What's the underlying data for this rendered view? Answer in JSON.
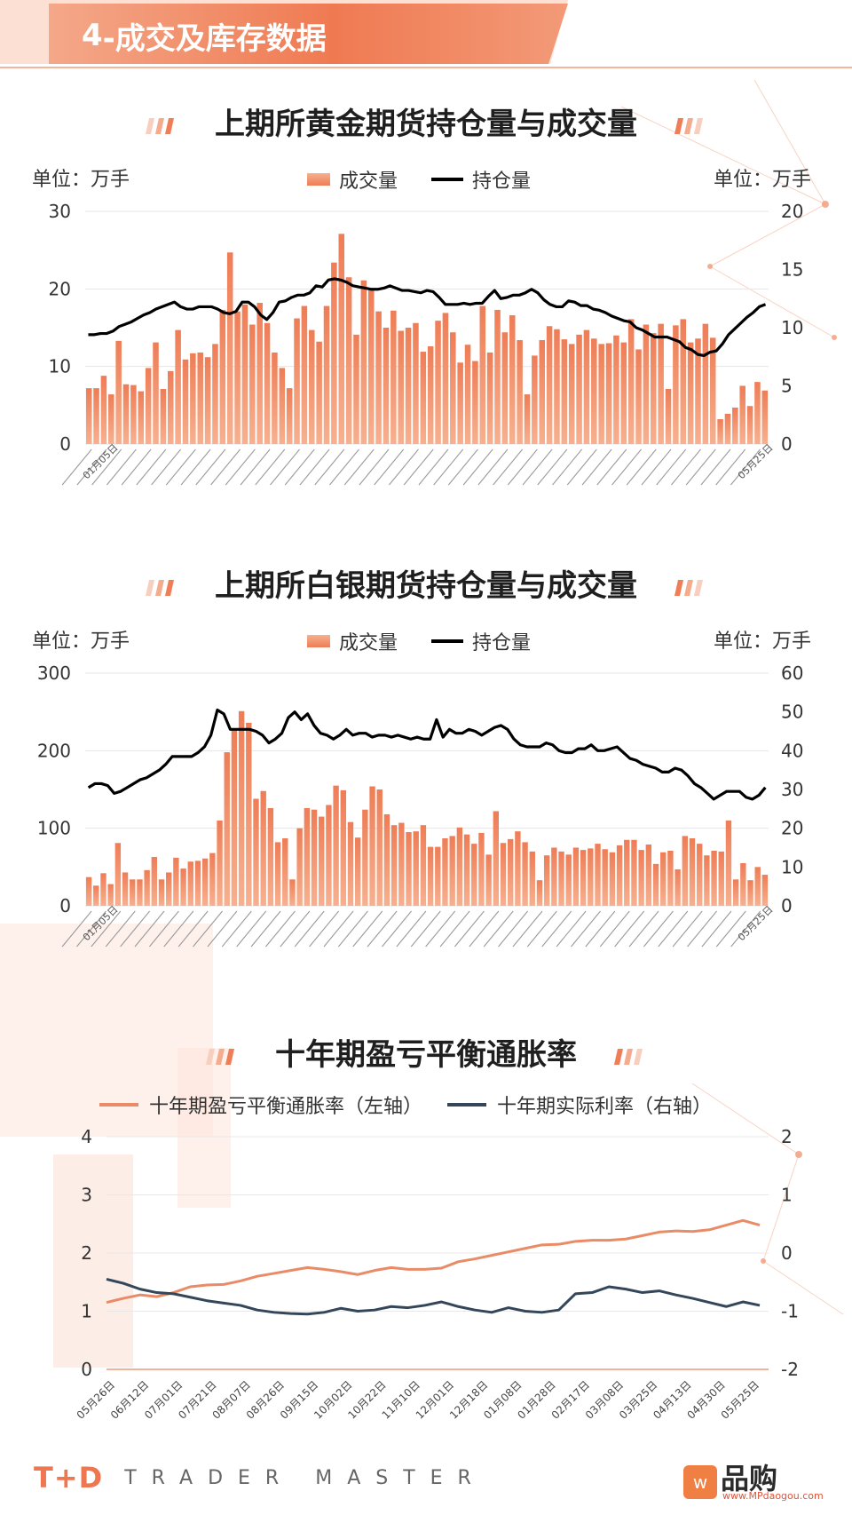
{
  "section": {
    "number": "4",
    "title": "-成交及库存数据"
  },
  "gold": {
    "title": "上期所黄金期货持仓量与成交量",
    "unit_left": "单位：万手",
    "unit_right": "单位：万手",
    "legend": {
      "bar": "成交量",
      "line": "持仓量"
    }
  },
  "silver": {
    "title": "上期所白银期货持仓量与成交量",
    "unit_left": "单位：万手",
    "unit_right": "单位：万手",
    "legend": {
      "bar": "成交量",
      "line": "持仓量"
    }
  },
  "inflation": {
    "title": "十年期盈亏平衡通胀率",
    "legend": {
      "orange": "十年期盈亏平衡通胀率（左轴）",
      "navy": "十年期实际利率（右轴）"
    }
  },
  "footer": {
    "logo": "T+D",
    "brand": "TRADER MASTER"
  },
  "watermark": {
    "mark": "w",
    "name": "品购",
    "url": "www.MPdaogou.com"
  },
  "colors": {
    "bar": "#ee7d56",
    "bar_light": "#f7b08f",
    "line_black": "#000000",
    "orange_line": "#e98b66",
    "navy_line": "#34465a",
    "accent": "#ef7a52"
  },
  "chart_data": [
    {
      "type": "bar",
      "name": "gold",
      "left_axis": {
        "min": 0,
        "max": 30,
        "ticks": [
          0,
          10,
          20,
          30
        ]
      },
      "right_axis": {
        "min": 0,
        "max": 20,
        "ticks": [
          0,
          5,
          10,
          15,
          20
        ]
      },
      "x_first": "01月05日",
      "x_last": "05月25日",
      "bar_series": "成交量",
      "bars": [
        7.2,
        7.2,
        8.8,
        6.4,
        13.3,
        7.7,
        7.6,
        6.8,
        9.8,
        13.1,
        7.1,
        9.4,
        14.7,
        10.9,
        11.7,
        11.8,
        11.2,
        12.9,
        17.3,
        24.7,
        17.1,
        18.0,
        15.4,
        18.2,
        15.6,
        11.8,
        9.8,
        7.2,
        16.2,
        17.8,
        14.7,
        13.2,
        17.8,
        23.4,
        27.1,
        21.5,
        14.1,
        21.1,
        19.8,
        17.1,
        15.0,
        17.2,
        14.6,
        15.0,
        15.6,
        11.9,
        12.6,
        15.9,
        16.9,
        14.4,
        10.5,
        12.8,
        10.7,
        17.8,
        11.8,
        17.3,
        14.4,
        16.6,
        13.4,
        6.4,
        11.4,
        13.4,
        15.2,
        14.8,
        13.5,
        12.9,
        14.1,
        14.7,
        13.6,
        12.9,
        13.0,
        14.0,
        13.1,
        16.1,
        12.2,
        15.4,
        14.3,
        15.5,
        7.1,
        15.3,
        16.1,
        13.1,
        13.6,
        15.5,
        13.7,
        3.2,
        3.9,
        4.7,
        7.5,
        4.9,
        8.0,
        6.9
      ],
      "line_series": "持仓量",
      "line": [
        9.4,
        9.4,
        9.5,
        9.5,
        9.7,
        10.1,
        10.3,
        10.5,
        10.8,
        11.1,
        11.3,
        11.6,
        11.8,
        12.0,
        12.2,
        11.8,
        11.6,
        11.6,
        11.8,
        11.8,
        11.8,
        11.6,
        11.3,
        11.2,
        11.4,
        12.2,
        12.2,
        11.8,
        11.1,
        10.7,
        11.3,
        12.2,
        12.3,
        12.6,
        12.8,
        12.8,
        13.0,
        13.6,
        13.5,
        14.1,
        14.2,
        14.1,
        13.9,
        13.6,
        13.5,
        13.4,
        13.3,
        13.3,
        13.4,
        13.6,
        13.4,
        13.2,
        13.2,
        13.1,
        13.0,
        13.2,
        13.1,
        12.6,
        12.0,
        12.0,
        12.0,
        12.1,
        12.0,
        12.1,
        12.1,
        12.7,
        13.2,
        12.5,
        12.6,
        12.8,
        12.8,
        13.0,
        13.3,
        13.0,
        12.4,
        12.0,
        11.8,
        11.8,
        12.3,
        12.2,
        11.9,
        11.9,
        11.6,
        11.5,
        11.3,
        11.0,
        10.8,
        10.6,
        10.5,
        10.0,
        9.8,
        9.5,
        9.2,
        9.2,
        9.2,
        9.0,
        8.8,
        8.3,
        8.1,
        7.7,
        7.6,
        7.9,
        8.0,
        8.6,
        9.4,
        9.9,
        10.4,
        10.9,
        11.3,
        11.8,
        12.0
      ]
    },
    {
      "type": "bar",
      "name": "silver",
      "left_axis": {
        "min": 0,
        "max": 300,
        "ticks": [
          0,
          100,
          200,
          300
        ]
      },
      "right_axis": {
        "min": 0,
        "max": 60,
        "ticks": [
          0,
          10,
          20,
          30,
          40,
          50,
          60
        ]
      },
      "x_first": "01月05日",
      "x_last": "05月25日",
      "bar_series": "成交量",
      "bars": [
        37,
        26,
        42,
        28,
        81,
        43,
        34,
        34,
        46,
        63,
        34,
        43,
        62,
        48,
        57,
        58,
        61,
        68,
        110,
        198,
        228,
        251,
        236,
        138,
        148,
        126,
        82,
        87,
        34,
        100,
        126,
        124,
        115,
        130,
        155,
        149,
        108,
        88,
        124,
        154,
        150,
        118,
        104,
        107,
        95,
        96,
        104,
        76,
        76,
        87,
        90,
        101,
        92,
        80,
        94,
        66,
        122,
        81,
        86,
        96,
        82,
        70,
        33,
        65,
        75,
        70,
        66,
        75,
        72,
        74,
        80,
        73,
        69,
        78,
        85,
        85,
        72,
        79,
        54,
        69,
        71,
        47,
        90,
        87,
        80,
        65,
        71,
        70,
        110,
        34,
        55,
        33,
        50,
        40
      ],
      "line_series": "持仓量",
      "line": [
        30.5,
        31.5,
        31.5,
        31.0,
        29.0,
        29.5,
        30.5,
        31.5,
        32.5,
        33.0,
        34.0,
        35.0,
        36.5,
        38.5,
        38.5,
        38.5,
        38.5,
        39.5,
        41.0,
        44.0,
        50.5,
        49.5,
        45.5,
        45.5,
        45.5,
        45.5,
        45.0,
        44.0,
        42.0,
        43.0,
        44.5,
        48.5,
        50.0,
        48.0,
        49.5,
        46.5,
        44.5,
        44.0,
        43.0,
        44.0,
        45.5,
        44.0,
        44.5,
        44.5,
        43.5,
        44.0,
        44.0,
        43.5,
        44.0,
        43.5,
        43.0,
        43.5,
        43.0,
        43.0,
        48.0,
        43.5,
        45.5,
        44.5,
        44.5,
        45.5,
        45.0,
        44.0,
        45.0,
        46.0,
        46.5,
        45.5,
        43.0,
        41.5,
        41.0,
        41.0,
        41.0,
        42.0,
        41.5,
        40.0,
        39.5,
        39.5,
        40.5,
        40.5,
        41.5,
        40.0,
        40.0,
        40.5,
        41.0,
        39.5,
        38.0,
        37.5,
        36.5,
        36.0,
        35.5,
        34.5,
        34.5,
        35.5,
        35.0,
        33.5,
        31.5,
        30.5,
        29.0,
        27.5,
        28.5,
        29.5,
        29.5,
        29.5,
        28.0,
        27.5,
        28.5,
        30.5
      ]
    },
    {
      "type": "line",
      "name": "breakeven",
      "left_axis": {
        "min": 0,
        "max": 4,
        "ticks": [
          0,
          1,
          2,
          3,
          4
        ]
      },
      "right_axis": {
        "min": -2,
        "max": 2,
        "ticks": [
          -2,
          -1,
          0,
          1,
          2
        ]
      },
      "x_labels": [
        "05月26日",
        "06月12日",
        "07月01日",
        "07月21日",
        "08月07日",
        "08月26日",
        "09月15日",
        "10月02日",
        "10月22日",
        "11月10日",
        "12月01日",
        "12月18日",
        "01月08日",
        "01月28日",
        "02月17日",
        "03月08日",
        "03月25日",
        "04月13日",
        "04月30日",
        "05月25日"
      ],
      "series": [
        {
          "name": "十年期盈亏平衡通胀率（左轴）",
          "axis": "left",
          "values": [
            1.15,
            1.22,
            1.28,
            1.25,
            1.32,
            1.42,
            1.45,
            1.46,
            1.52,
            1.6,
            1.65,
            1.7,
            1.75,
            1.72,
            1.68,
            1.63,
            1.7,
            1.75,
            1.72,
            1.72,
            1.74,
            1.85,
            1.9,
            1.96,
            2.02,
            2.08,
            2.14,
            2.15,
            2.2,
            2.22,
            2.22,
            2.24,
            2.3,
            2.36,
            2.38,
            2.37,
            2.4,
            2.48,
            2.56,
            2.48
          ]
        },
        {
          "name": "十年期实际利率（右轴）",
          "axis": "right",
          "values": [
            -0.45,
            -0.52,
            -0.62,
            -0.68,
            -0.7,
            -0.76,
            -0.82,
            -0.86,
            -0.9,
            -0.98,
            -1.02,
            -1.04,
            -1.05,
            -1.02,
            -0.95,
            -1.0,
            -0.98,
            -0.92,
            -0.94,
            -0.9,
            -0.84,
            -0.92,
            -0.98,
            -1.02,
            -0.94,
            -1.0,
            -1.02,
            -0.98,
            -0.7,
            -0.68,
            -0.58,
            -0.62,
            -0.68,
            -0.65,
            -0.72,
            -0.78,
            -0.85,
            -0.92,
            -0.84,
            -0.9
          ]
        }
      ]
    }
  ]
}
